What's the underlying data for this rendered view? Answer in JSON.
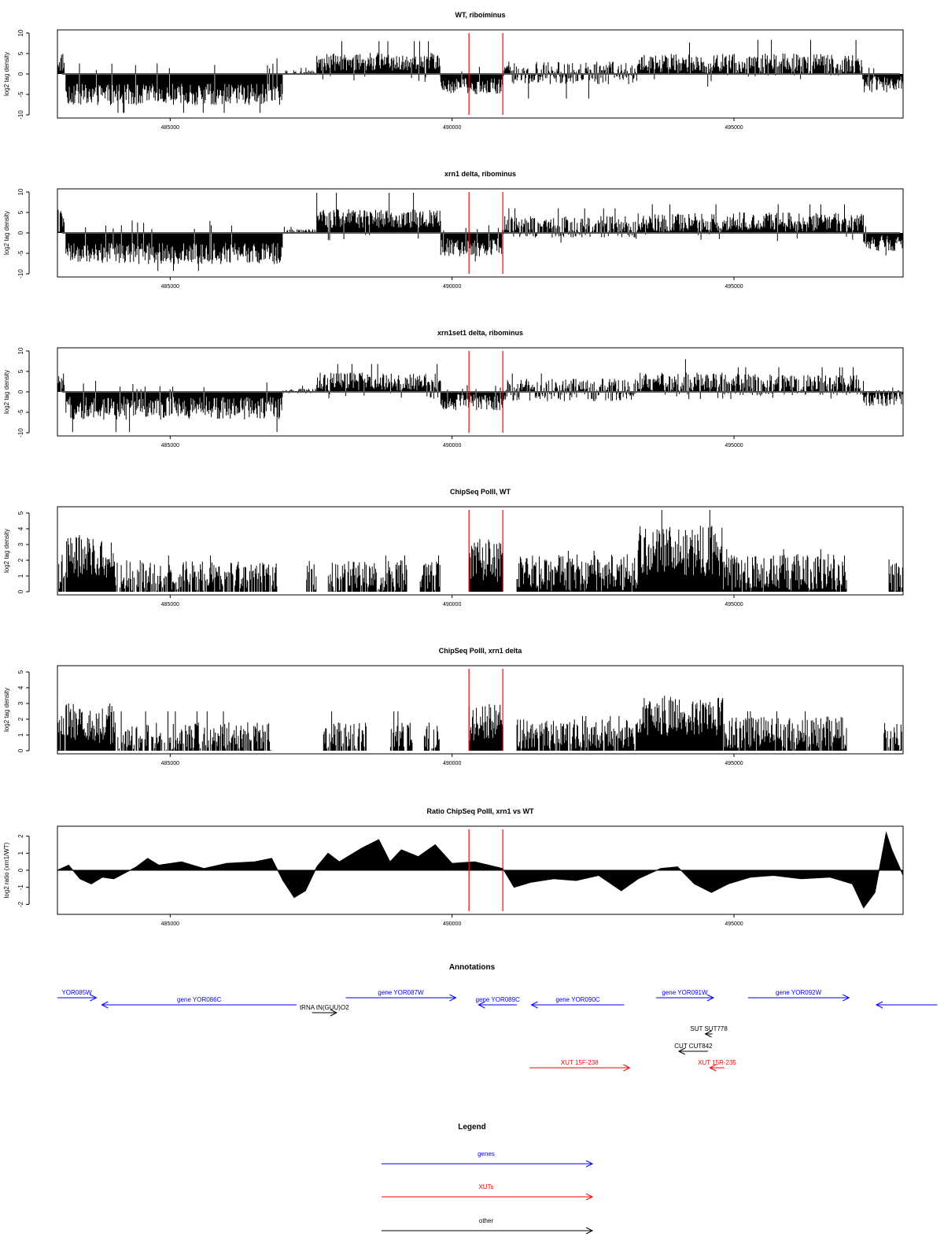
{
  "chart_data": [
    {
      "type": "bar",
      "title": "WT, riboiminus",
      "ylabel": "log2 tag density",
      "xlim": [
        483000,
        498000
      ],
      "ylim": [
        -10,
        10
      ],
      "yticks": [
        10,
        5,
        0,
        -5,
        -10
      ],
      "xticks": [
        485000,
        490000,
        495000
      ],
      "xtick_labels": [
        "485000",
        "490000",
        "495000"
      ],
      "markers": [
        490300,
        490900
      ],
      "segments": [
        {
          "x0": 483000,
          "x1": 483120,
          "base": 3,
          "spread": 2.5,
          "spike": 7.5
        },
        {
          "x0": 483150,
          "x1": 487000,
          "base": -5,
          "spread": 2.6,
          "spike": -9.5
        },
        {
          "x0": 487000,
          "x1": 487600,
          "base": 0.3,
          "spread": 0.6,
          "spike": 1.5
        },
        {
          "x0": 487600,
          "x1": 489800,
          "base": 3,
          "spread": 2.2,
          "spike": 8
        },
        {
          "x0": 489800,
          "x1": 490900,
          "base": -3,
          "spread": 2,
          "spike": -6.5
        },
        {
          "x0": 490900,
          "x1": 493300,
          "base": 0.3,
          "spread": 2.8,
          "spike": -6
        },
        {
          "x0": 493300,
          "x1": 494800,
          "base": 2.5,
          "spread": 2.4,
          "spike": 7.7
        },
        {
          "x0": 494800,
          "x1": 497300,
          "base": 2.3,
          "spread": 2.7,
          "spike": 8.3
        },
        {
          "x0": 497300,
          "x1": 498000,
          "base": -2.5,
          "spread": 2,
          "spike": -6
        }
      ]
    },
    {
      "type": "bar",
      "title": "xrn1 delta, ribominus",
      "ylabel": "log2 tag density",
      "xlim": [
        483000,
        498000
      ],
      "ylim": [
        -10,
        10
      ],
      "yticks": [
        10,
        5,
        0,
        -5,
        -10
      ],
      "xticks": [
        485000,
        490000,
        495000
      ],
      "xtick_labels": [
        "485000",
        "490000",
        "495000"
      ],
      "markers": [
        490300,
        490900
      ],
      "segments": [
        {
          "x0": 483000,
          "x1": 483120,
          "base": 3,
          "spread": 3,
          "spike": 8
        },
        {
          "x0": 483150,
          "x1": 487000,
          "base": -5,
          "spread": 2.6,
          "spike": -9.3
        },
        {
          "x0": 487000,
          "x1": 487600,
          "base": 0.3,
          "spread": 0.6,
          "spike": 1.5
        },
        {
          "x0": 487600,
          "x1": 489800,
          "base": 3.5,
          "spread": 2.3,
          "spike": 9.8
        },
        {
          "x0": 489800,
          "x1": 490900,
          "base": -3.5,
          "spread": 2.2,
          "spike": -7
        },
        {
          "x0": 490900,
          "x1": 493300,
          "base": 1.5,
          "spread": 2.6,
          "spike": 6
        },
        {
          "x0": 493300,
          "x1": 494800,
          "base": 2.5,
          "spread": 2.3,
          "spike": 7
        },
        {
          "x0": 494800,
          "x1": 497300,
          "base": 2.7,
          "spread": 2.4,
          "spike": 7
        },
        {
          "x0": 497300,
          "x1": 498000,
          "base": -2.5,
          "spread": 2,
          "spike": -5.5
        }
      ]
    },
    {
      "type": "bar",
      "title": "xrn1set1 delta, ribominus",
      "ylabel": "log2 tag density",
      "xlim": [
        483000,
        498000
      ],
      "ylim": [
        -10,
        10
      ],
      "yticks": [
        10,
        5,
        0,
        -5,
        -10
      ],
      "xticks": [
        485000,
        490000,
        495000
      ],
      "xtick_labels": [
        "485000",
        "490000",
        "495000"
      ],
      "markers": [
        490300,
        490900
      ],
      "segments": [
        {
          "x0": 483000,
          "x1": 483120,
          "base": 2,
          "spread": 2.5,
          "spike": 7.5
        },
        {
          "x0": 483150,
          "x1": 487000,
          "base": -4,
          "spread": 2.8,
          "spike": -9.8
        },
        {
          "x0": 487000,
          "x1": 487600,
          "base": 0.2,
          "spread": 0.6,
          "spike": 1.5
        },
        {
          "x0": 487600,
          "x1": 489800,
          "base": 2.5,
          "spread": 2.2,
          "spike": 6.8
        },
        {
          "x0": 489800,
          "x1": 490900,
          "base": -2.5,
          "spread": 2,
          "spike": -5.5
        },
        {
          "x0": 490900,
          "x1": 493300,
          "base": 0.5,
          "spread": 2.8,
          "spike": 4.5
        },
        {
          "x0": 493300,
          "x1": 494800,
          "base": 2.3,
          "spread": 2.4,
          "spike": 8
        },
        {
          "x0": 494800,
          "x1": 497300,
          "base": 1.8,
          "spread": 2.6,
          "spike": 6
        },
        {
          "x0": 497300,
          "x1": 498000,
          "base": -1.5,
          "spread": 2,
          "spike": 2
        }
      ]
    },
    {
      "type": "bar",
      "title": "ChipSeq PolII, WT",
      "ylabel": "log2 tag density",
      "xlim": [
        483000,
        498000
      ],
      "ylim": [
        0,
        5.2
      ],
      "yticks": [
        0,
        1,
        2,
        3,
        4,
        5
      ],
      "xticks": [
        485000,
        490000,
        495000
      ],
      "xtick_labels": [
        "485000",
        "490000",
        "495000"
      ],
      "markers": [
        490300,
        490900
      ],
      "segments": [
        {
          "x0": 483000,
          "x1": 483120,
          "base": 1.2,
          "spread": 1.6,
          "spike": 3
        },
        {
          "x0": 483150,
          "x1": 484000,
          "base": 2.2,
          "spread": 1.3,
          "spike": 3.6
        },
        {
          "x0": 484000,
          "x1": 489800,
          "base": 0.7,
          "spread": 1.3,
          "spike": 2.3,
          "gaps": [
            [
              486900,
              487400
            ],
            [
              487600,
              487800
            ],
            [
              489200,
              489400
            ]
          ]
        },
        {
          "x0": 490300,
          "x1": 490900,
          "base": 2,
          "spread": 1.4,
          "spike": 3.6
        },
        {
          "x0": 491150,
          "x1": 493300,
          "base": 1.2,
          "spread": 1.2,
          "spike": 2.6
        },
        {
          "x0": 493300,
          "x1": 494800,
          "base": 2.6,
          "spread": 1.6,
          "spike": 5.3
        },
        {
          "x0": 494800,
          "x1": 497000,
          "base": 1.2,
          "spread": 1.2,
          "spike": 2.7
        },
        {
          "x0": 497750,
          "x1": 498000,
          "base": 0.9,
          "spread": 1.2,
          "spike": 2.3
        }
      ]
    },
    {
      "type": "bar",
      "title": "ChipSeq PolII, xrn1 delta",
      "ylabel": "log2 tag density",
      "xlim": [
        483000,
        498000
      ],
      "ylim": [
        0,
        5.2
      ],
      "yticks": [
        0,
        1,
        2,
        3,
        4,
        5
      ],
      "xticks": [
        485000,
        490000,
        495000
      ],
      "xtick_labels": [
        "485000",
        "490000",
        "495000"
      ],
      "markers": [
        490300,
        490900
      ],
      "segments": [
        {
          "x0": 483000,
          "x1": 483120,
          "base": 1.2,
          "spread": 1.4,
          "spike": 2.2
        },
        {
          "x0": 483150,
          "x1": 484000,
          "base": 1.7,
          "spread": 1.3,
          "spike": 3
        },
        {
          "x0": 484000,
          "x1": 489800,
          "base": 0.6,
          "spread": 1.2,
          "spike": 2.5,
          "gaps": [
            [
              486800,
              487700
            ],
            [
              488500,
              488900
            ],
            [
              489300,
              489500
            ]
          ]
        },
        {
          "x0": 490300,
          "x1": 490900,
          "base": 1.8,
          "spread": 1.2,
          "spike": 3.1
        },
        {
          "x0": 491150,
          "x1": 493300,
          "base": 0.9,
          "spread": 1.1,
          "spike": 2.2
        },
        {
          "x0": 493300,
          "x1": 494800,
          "base": 2.2,
          "spread": 1.3,
          "spike": 3.7
        },
        {
          "x0": 494800,
          "x1": 497000,
          "base": 1,
          "spread": 1.2,
          "spike": 2.5
        },
        {
          "x0": 497650,
          "x1": 498000,
          "base": 0.7,
          "spread": 1.1,
          "spike": 1.6
        }
      ]
    },
    {
      "type": "area",
      "title": "Ratio ChipSeq PolII, xrn1 vs WT",
      "ylabel": "log2 ratio (xrn1/WT)",
      "xlim": [
        483000,
        498000
      ],
      "ylim": [
        -2.4,
        2.4
      ],
      "yticks": [
        2,
        1,
        0,
        -1,
        -2
      ],
      "xticks": [
        485000,
        490000,
        495000
      ],
      "xtick_labels": [
        "485000",
        "490000",
        "495000"
      ],
      "markers": [
        490300,
        490900
      ],
      "points": [
        [
          483000,
          0
        ],
        [
          483200,
          0.3
        ],
        [
          483400,
          -0.5
        ],
        [
          483600,
          -0.8
        ],
        [
          483800,
          -0.4
        ],
        [
          484000,
          -0.5
        ],
        [
          484400,
          0.2
        ],
        [
          484600,
          0.7
        ],
        [
          484800,
          0.3
        ],
        [
          485200,
          0.5
        ],
        [
          485600,
          0.1
        ],
        [
          486000,
          0.4
        ],
        [
          486500,
          0.5
        ],
        [
          486800,
          0.7
        ],
        [
          487000,
          -0.6
        ],
        [
          487200,
          -1.6
        ],
        [
          487400,
          -1.2
        ],
        [
          487600,
          0.2
        ],
        [
          487800,
          1
        ],
        [
          488000,
          0.5
        ],
        [
          488400,
          1.3
        ],
        [
          488700,
          1.8
        ],
        [
          488900,
          0.5
        ],
        [
          489100,
          1.2
        ],
        [
          489400,
          0.8
        ],
        [
          489700,
          1.5
        ],
        [
          490000,
          0.4
        ],
        [
          490400,
          0.5
        ],
        [
          490900,
          0.1
        ],
        [
          491100,
          -1
        ],
        [
          491400,
          -0.7
        ],
        [
          491800,
          -0.5
        ],
        [
          492200,
          -0.6
        ],
        [
          492600,
          -0.3
        ],
        [
          493000,
          -1.2
        ],
        [
          493300,
          -0.5
        ],
        [
          493700,
          0.1
        ],
        [
          494000,
          0.2
        ],
        [
          494300,
          -0.8
        ],
        [
          494600,
          -1.3
        ],
        [
          494900,
          -0.8
        ],
        [
          495300,
          -0.4
        ],
        [
          495700,
          -0.3
        ],
        [
          496200,
          -0.5
        ],
        [
          496700,
          -0.4
        ],
        [
          497100,
          -0.8
        ],
        [
          497300,
          -2.2
        ],
        [
          497500,
          -1.3
        ],
        [
          497700,
          2.2
        ],
        [
          497800,
          1.2
        ],
        [
          498000,
          -0.3
        ]
      ]
    }
  ],
  "annotations": {
    "title": "Annotations",
    "items": [
      {
        "label": "YOR085W",
        "x0": 0.03,
        "x1": 0.073,
        "row": 0,
        "dir": "right",
        "kind": "gene"
      },
      {
        "label": "gene YOR086C",
        "x0": 0.079,
        "x1": 0.293,
        "row": 1,
        "dir": "left",
        "kind": "gene"
      },
      {
        "label": "tRNA tN(GUU)O2",
        "x0": 0.31,
        "x1": 0.337,
        "row": 2,
        "dir": "right",
        "kind": "other"
      },
      {
        "label": "gene YOR087W",
        "x0": 0.347,
        "x1": 0.468,
        "row": 0,
        "dir": "right",
        "kind": "gene"
      },
      {
        "label": "gene YOR089C",
        "x0": 0.493,
        "x1": 0.535,
        "row": 1,
        "dir": "left",
        "kind": "gene"
      },
      {
        "label": "gene YOR090C",
        "x0": 0.551,
        "x1": 0.653,
        "row": 1,
        "dir": "left",
        "kind": "gene"
      },
      {
        "label": "gene YOR091W",
        "x0": 0.688,
        "x1": 0.751,
        "row": 0,
        "dir": "right",
        "kind": "gene"
      },
      {
        "label": "gene YOR092W",
        "x0": 0.789,
        "x1": 0.9,
        "row": 0,
        "dir": "right",
        "kind": "gene"
      },
      {
        "label": "",
        "x0": 0.93,
        "x1": 0.997,
        "row": 1,
        "dir": "left",
        "kind": "gene"
      },
      {
        "label": "SUT SUT778",
        "x0": 0.742,
        "x1": 0.75,
        "row": 3,
        "dir": "left",
        "kind": "other"
      },
      {
        "label": "CUT CUT842",
        "x0": 0.713,
        "x1": 0.745,
        "row": 4,
        "dir": "left",
        "kind": "other"
      },
      {
        "label": "XUT 15F-238",
        "x0": 0.549,
        "x1": 0.659,
        "row": 5,
        "dir": "right",
        "kind": "xut"
      },
      {
        "label": "XUT 15R-235",
        "x0": 0.747,
        "x1": 0.763,
        "row": 5,
        "dir": "left",
        "kind": "xut"
      }
    ]
  },
  "legend": {
    "title": "Legend",
    "entries": [
      {
        "label": "genes",
        "kind": "gene"
      },
      {
        "label": "XUTs",
        "kind": "xut"
      },
      {
        "label": "other",
        "kind": "other"
      }
    ]
  },
  "colors": {
    "gene": "#0000ff",
    "xut": "#ff0000",
    "other": "#000000",
    "marker": "#ff0000",
    "bars": "#000000"
  }
}
